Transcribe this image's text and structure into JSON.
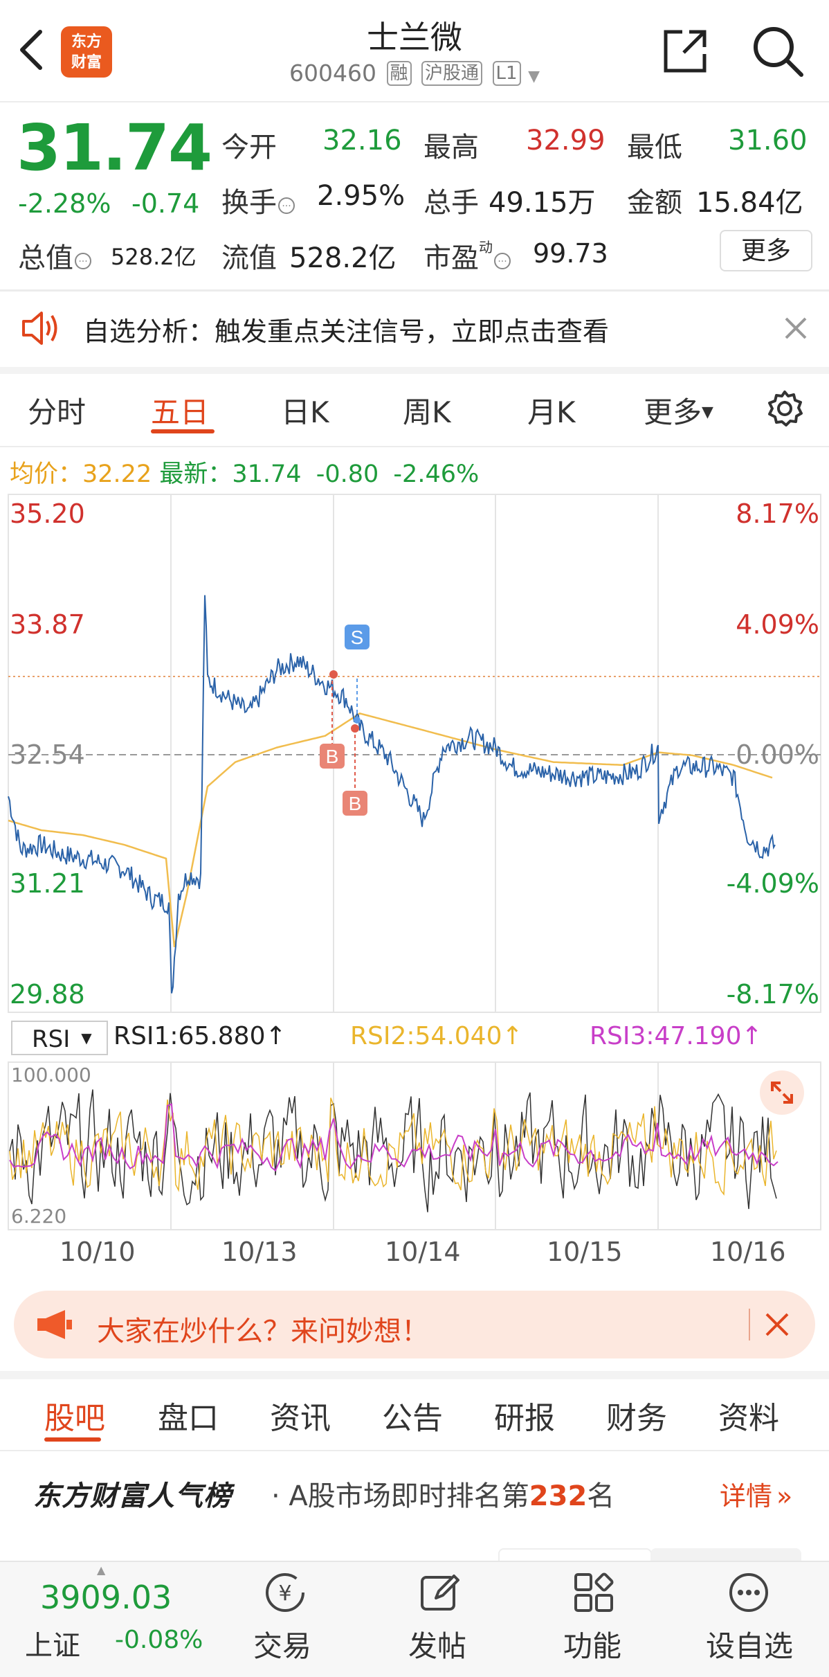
{
  "header": {
    "logo_line1": "东方",
    "logo_line2": "财富",
    "title": "士兰微",
    "code": "600460",
    "tags": [
      "融",
      "沪股通",
      "L1"
    ]
  },
  "quote": {
    "price": "31.74",
    "change_pct": "-2.28%",
    "change": "-0.74",
    "open_label": "今开",
    "open": "32.16",
    "high_label": "最高",
    "high": "32.99",
    "low_label": "最低",
    "low": "31.60",
    "turnover_label": "换手",
    "turnover": "2.95%",
    "volume_label": "总手",
    "volume": "49.15万",
    "amount_label": "金额",
    "amount": "15.84亿",
    "mktcap_label": "总值",
    "mktcap": "528.2亿",
    "float_label": "流值",
    "float_cap": "528.2亿",
    "pe_label": "市盈",
    "pe_sup": "动",
    "pe": "99.73",
    "more": "更多"
  },
  "notice": {
    "text": "自选分析：触发重点关注信号，立即点击查看"
  },
  "chart_tabs": [
    "分时",
    "五日",
    "日K",
    "周K",
    "月K",
    "更多"
  ],
  "active_chart_tab": "五日",
  "avg_line": {
    "avg_label": "均价：",
    "avg": "32.22",
    "latest_label": "最新：",
    "latest": "31.74",
    "chg": "-0.80",
    "chg_pct": "-2.46%"
  },
  "chart_data": {
    "type": "line",
    "x": [
      "10/10",
      "10/13",
      "10/14",
      "10/15",
      "10/16"
    ],
    "y_ticks_left": [
      "35.20",
      "33.87",
      "32.54",
      "31.21",
      "29.88"
    ],
    "y_ticks_right": [
      "8.17%",
      "4.09%",
      "0.00%",
      "-4.09%",
      "-8.17%"
    ],
    "ylim": [
      29.88,
      35.2
    ],
    "reference": 32.54,
    "series": [],
    "markers": [
      "S",
      "B",
      "B"
    ],
    "colors": {
      "price": "#2a62a8",
      "avg": "#f1bd4e"
    }
  },
  "rsi": {
    "select": "RSI",
    "rsi1": "RSI1:65.880↑",
    "rsi2": "RSI2:54.040↑",
    "rsi3": "RSI3:47.190↑",
    "max": "100.000",
    "min": "6.220"
  },
  "dates": [
    "10/10",
    "10/13",
    "10/14",
    "10/15",
    "10/16"
  ],
  "banner": {
    "text": "大家在炒什么？来问妙想！"
  },
  "bottom_tabs": [
    "股吧",
    "盘口",
    "资讯",
    "公告",
    "研报",
    "财务",
    "资料"
  ],
  "active_bottom_tab": "股吧",
  "rank": {
    "logo": "东方财富人气榜",
    "text_pre": "· A股市场即时排名第",
    "rank": "232",
    "text_post": "名",
    "link": "详情"
  },
  "bottom_nav": {
    "index_value": "3909.03",
    "index_name": "上证",
    "index_change": "-0.08%",
    "items": [
      "交易",
      "发帖",
      "功能",
      "设自选"
    ]
  }
}
